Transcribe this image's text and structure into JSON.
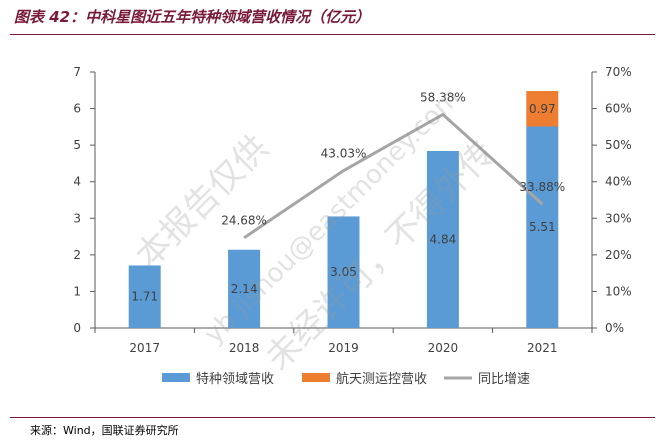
{
  "title": "图表 42：中科星图近五年特种领域营收情况（亿元）",
  "source": "来源：Wind，国联证券研究所",
  "watermark": [
    "本报告仅供",
    "yb jishou@eastmoney.com",
    "未经许可，不得外传"
  ],
  "colors": {
    "bar_main": "#5b9bd5",
    "bar_top": "#ed7d31",
    "line": "#a5a5a5",
    "axis": "#595959",
    "accent": "#7a1a3a"
  },
  "chart_data": {
    "type": "bar",
    "categories": [
      "2017",
      "2018",
      "2019",
      "2020",
      "2021"
    ],
    "series": [
      {
        "name": "特种领域营收",
        "kind": "bar",
        "axis": "left",
        "values": [
          1.71,
          2.14,
          3.05,
          4.84,
          5.51
        ],
        "labels": [
          "1.71",
          "2.14",
          "3.05",
          "4.84",
          "5.51"
        ]
      },
      {
        "name": "航天测运控营收",
        "kind": "bar-stacked",
        "axis": "left",
        "values": [
          null,
          null,
          null,
          null,
          0.97
        ],
        "labels": [
          "",
          "",
          "",
          "",
          "0.97"
        ]
      },
      {
        "name": "同比增速",
        "kind": "line",
        "axis": "right",
        "values": [
          null,
          24.68,
          43.03,
          58.38,
          33.88
        ],
        "labels": [
          "",
          "24.68%",
          "43.03%",
          "58.38%",
          "33.88%"
        ]
      }
    ],
    "y_left": {
      "min": 0,
      "max": 7,
      "ticks": [
        "0",
        "1",
        "2",
        "3",
        "4",
        "5",
        "6",
        "7"
      ]
    },
    "y_right": {
      "min": 0,
      "max": 70,
      "ticks": [
        "0%",
        "10%",
        "20%",
        "30%",
        "40%",
        "50%",
        "60%",
        "70%"
      ]
    },
    "legend": "bottom",
    "grid": false
  }
}
